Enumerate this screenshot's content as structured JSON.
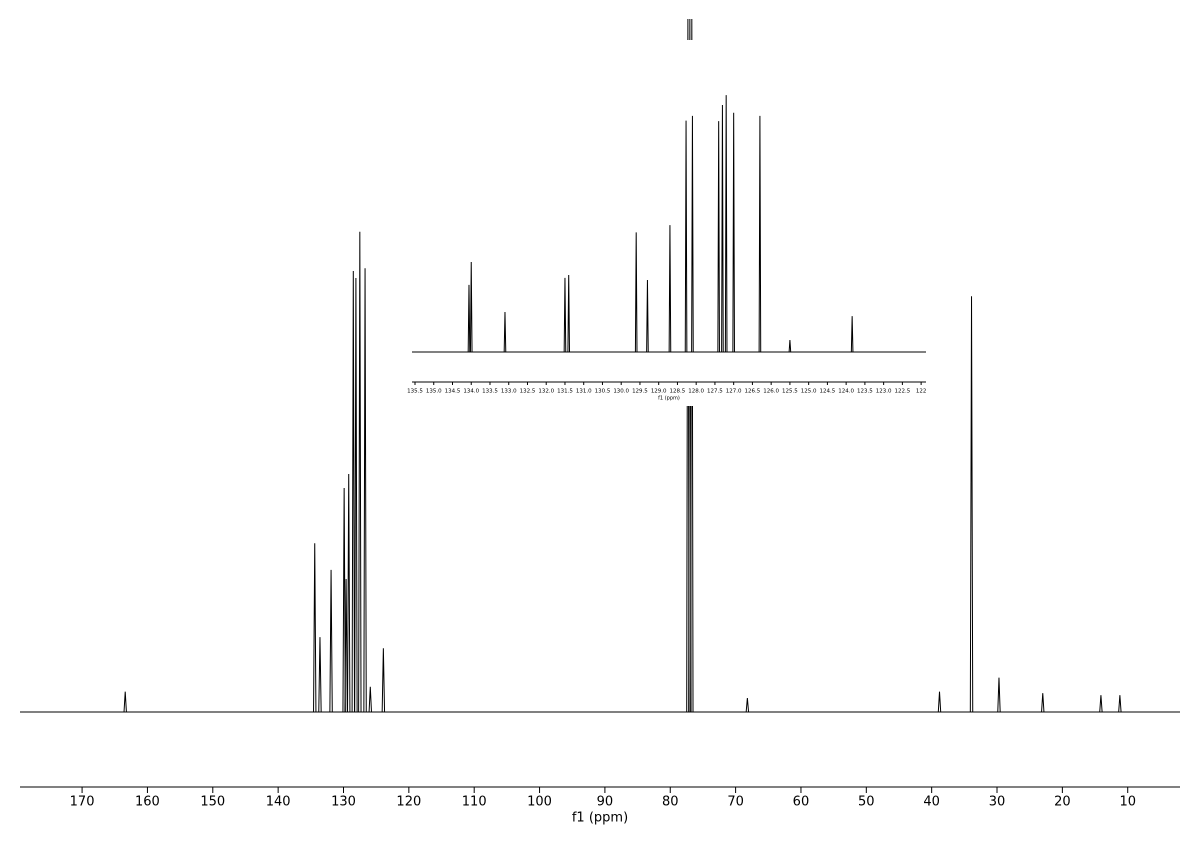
{
  "chart_data": [
    {
      "type": "spectrum",
      "xlabel": "f1 (ppm)",
      "color": "#000000",
      "xlim": [
        179.5,
        2
      ],
      "ylim": [
        0,
        100
      ],
      "xticks": [
        170,
        160,
        150,
        140,
        130,
        120,
        110,
        100,
        90,
        80,
        70,
        60,
        50,
        40,
        30,
        20,
        10
      ],
      "x": [
        163.4,
        134.4,
        133.6,
        131.9,
        129.9,
        129.6,
        129.2,
        128.5,
        128.1,
        127.5,
        126.7,
        125.9,
        123.9,
        77.3,
        77.0,
        76.7,
        68.2,
        38.8,
        33.9,
        29.7,
        23.0,
        14.1,
        11.2
      ],
      "values": [
        2.9,
        24.1,
        10.7,
        20.3,
        32,
        19,
        34,
        63,
        62,
        68.6,
        63.4,
        3.6,
        9.1,
        99,
        99,
        99,
        2,
        2.9,
        59.4,
        4.9,
        2.7,
        2.4,
        2.4
      ]
    },
    {
      "type": "spectrum",
      "xlabel": "f1 (ppm)",
      "color": "#000000",
      "xlim": [
        135.58,
        121.87
      ],
      "ylim": [
        0,
        100
      ],
      "xticks": [
        135.5,
        {
          "value": 135,
          "label": "135.0"
        },
        134.5,
        {
          "value": 134,
          "label": "134.0"
        },
        133.5,
        {
          "value": 133,
          "label": "133.0"
        },
        132.5,
        {
          "value": 132,
          "label": "132.0"
        },
        131.5,
        {
          "value": 131,
          "label": "131.0"
        },
        130.5,
        {
          "value": 130,
          "label": "130.0"
        },
        129.5,
        {
          "value": 129,
          "label": "129.0"
        },
        128.5,
        {
          "value": 128,
          "label": "128.0"
        },
        127.5,
        {
          "value": 127,
          "label": "127.0"
        },
        126.5,
        {
          "value": 126,
          "label": "126.0"
        },
        125.5,
        {
          "value": 125,
          "label": "125.0"
        },
        124.5,
        {
          "value": 124,
          "label": "124.0"
        },
        123.5,
        {
          "value": 123,
          "label": "123.0"
        },
        122.5,
        122
      ],
      "x": [
        134.06,
        134.0,
        133.1,
        131.5,
        131.4,
        129.6,
        129.3,
        128.7,
        128.27,
        128.1,
        127.4,
        127.3,
        127.2,
        127.0,
        126.3,
        125.5,
        123.84
      ],
      "values": [
        25.8,
        34.6,
        15.4,
        28.5,
        29.6,
        46,
        27.7,
        48.8,
        89,
        90.8,
        88.8,
        95,
        98.8,
        92,
        90.8,
        4.6,
        13.8
      ]
    }
  ]
}
